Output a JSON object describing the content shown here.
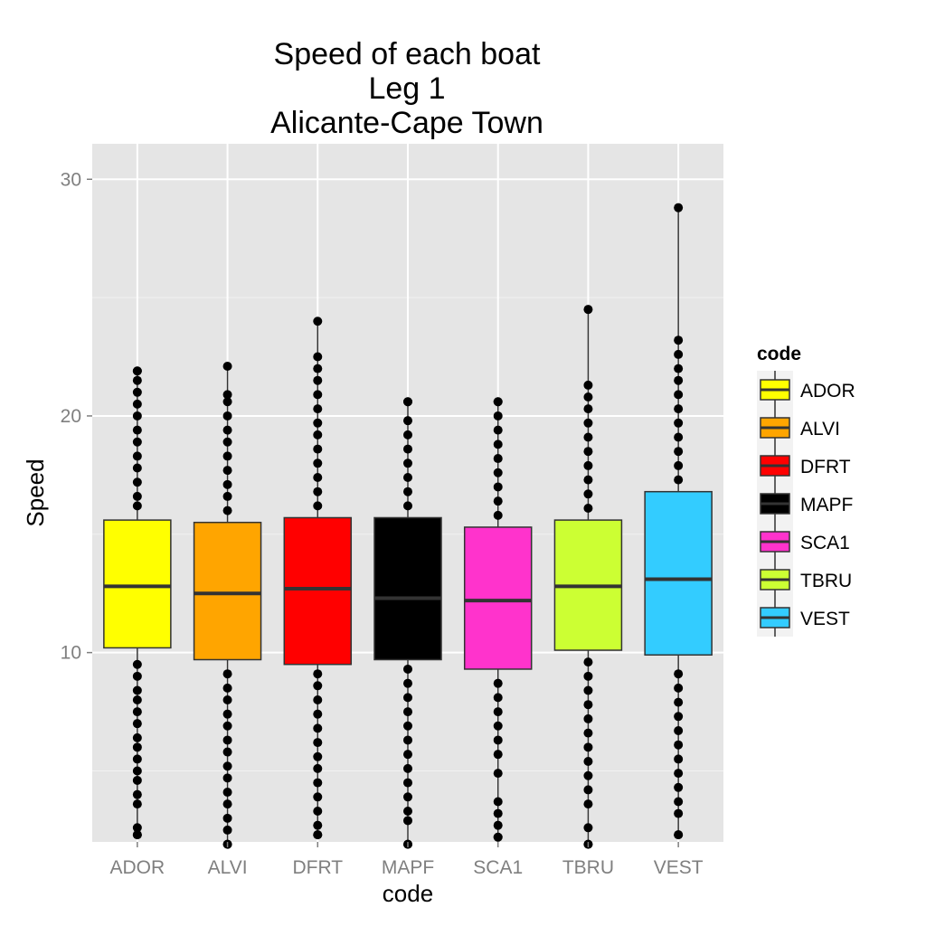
{
  "chart_data": {
    "type": "boxplot",
    "title_lines": [
      "Speed of each boat",
      "Leg 1",
      "Alicante-Cape Town"
    ],
    "xlabel": "code",
    "ylabel": "Speed",
    "ylim": [
      2,
      31.5
    ],
    "yticks": [
      10,
      20,
      30
    ],
    "grid": true,
    "legend": {
      "title": "code",
      "position": "right"
    },
    "categories": [
      "ADOR",
      "ALVI",
      "DFRT",
      "MAPF",
      "SCA1",
      "TBRU",
      "VEST"
    ],
    "boxes": [
      {
        "name": "ADOR",
        "color": "#FFFF00",
        "q1": 10.2,
        "median": 12.8,
        "q3": 15.6,
        "whisker_low": 2.3,
        "whisker_high": 21.9,
        "outliers": [
          2.3,
          2.6,
          3.6,
          4.0,
          4.6,
          5.0,
          5.5,
          6.0,
          6.4,
          7.0,
          7.5,
          8.0,
          8.4,
          9.0,
          9.5,
          16.2,
          16.6,
          17.2,
          17.8,
          18.3,
          18.9,
          19.4,
          20.0,
          20.5,
          21.0,
          21.5,
          21.9
        ]
      },
      {
        "name": "ALVI",
        "color": "#FFA500",
        "q1": 9.7,
        "median": 12.5,
        "q3": 15.5,
        "whisker_low": 1.9,
        "whisker_high": 22.1,
        "outliers": [
          1.9,
          2.5,
          3.0,
          3.6,
          4.1,
          4.7,
          5.2,
          5.8,
          6.3,
          6.9,
          7.4,
          8.0,
          8.5,
          9.1,
          16.0,
          16.6,
          17.1,
          17.7,
          18.3,
          18.9,
          19.4,
          20.0,
          20.6,
          20.9
        ]
      },
      {
        "name": "DFRT",
        "color": "#FF0000",
        "q1": 9.5,
        "median": 12.7,
        "q3": 15.7,
        "whisker_low": 2.3,
        "whisker_high": 24.0,
        "outliers": [
          2.3,
          2.7,
          3.3,
          3.9,
          4.5,
          5.1,
          5.6,
          6.2,
          6.8,
          7.4,
          8.0,
          8.6,
          9.1,
          16.2,
          16.8,
          17.4,
          18.0,
          18.6,
          19.2,
          19.7,
          20.3,
          20.9,
          21.5,
          22.0,
          22.5
        ]
      },
      {
        "name": "MAPF",
        "color": "#000000",
        "q1": 9.7,
        "median": 12.3,
        "q3": 15.7,
        "whisker_low": 1.9,
        "whisker_high": 20.6,
        "outliers": [
          1.9,
          2.9,
          3.3,
          3.9,
          4.5,
          5.1,
          5.7,
          6.3,
          6.9,
          7.5,
          8.1,
          8.7,
          9.3,
          16.2,
          16.8,
          17.4,
          18.0,
          18.6,
          19.2,
          19.8,
          20.6
        ]
      },
      {
        "name": "SCA1",
        "color": "#FF33CC",
        "q1": 9.3,
        "median": 12.2,
        "q3": 15.3,
        "whisker_low": 2.2,
        "whisker_high": 20.6,
        "outliers": [
          2.2,
          2.7,
          3.2,
          3.7,
          4.9,
          5.7,
          6.3,
          6.9,
          7.5,
          8.1,
          8.7,
          15.8,
          16.4,
          17.0,
          17.6,
          18.2,
          18.8,
          19.4,
          20.0,
          20.6
        ]
      },
      {
        "name": "TBRU",
        "color": "#CCFF33",
        "q1": 10.1,
        "median": 12.8,
        "q3": 15.6,
        "whisker_low": 1.9,
        "whisker_high": 24.5,
        "outliers": [
          1.9,
          2.6,
          3.6,
          4.2,
          4.8,
          5.4,
          6.0,
          6.6,
          7.2,
          7.8,
          8.4,
          9.0,
          9.6,
          16.1,
          16.7,
          17.3,
          17.9,
          18.5,
          19.1,
          19.7,
          20.3,
          20.8,
          21.3
        ]
      },
      {
        "name": "VEST",
        "color": "#33CCFF",
        "q1": 9.9,
        "median": 13.1,
        "q3": 16.8,
        "whisker_low": 2.3,
        "whisker_high": 28.8,
        "outliers": [
          2.3,
          3.2,
          3.7,
          4.3,
          4.9,
          5.5,
          6.1,
          6.7,
          7.3,
          7.9,
          8.5,
          9.1,
          17.3,
          17.9,
          18.5,
          19.1,
          19.7,
          20.3,
          20.9,
          21.5,
          22.0,
          22.6,
          23.2
        ]
      }
    ]
  }
}
